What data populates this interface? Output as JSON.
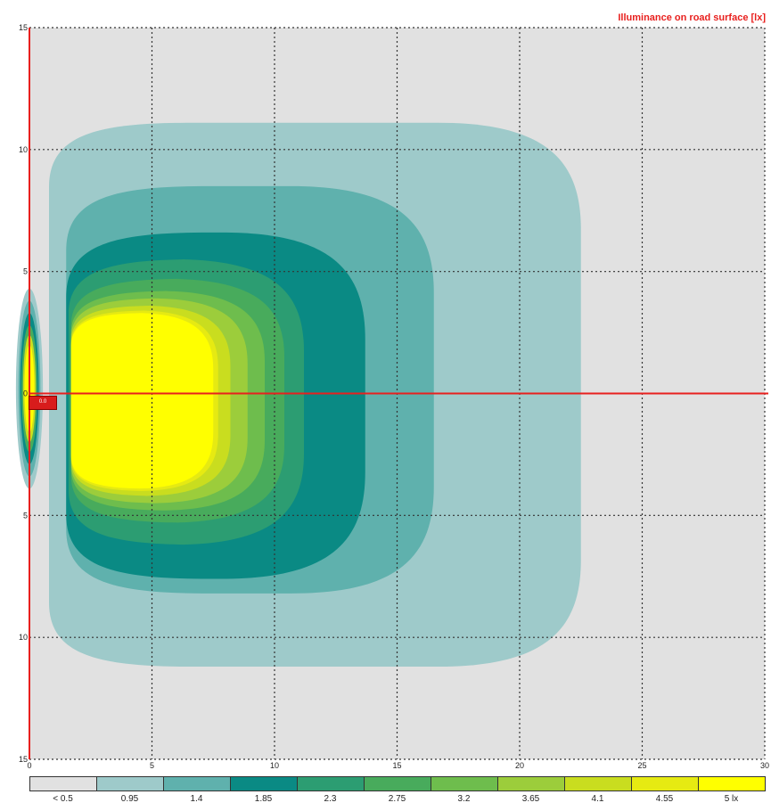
{
  "chart_data": {
    "type": "heatmap",
    "title": "Illuminance on road surface [lx]",
    "xlabel": "",
    "ylabel": "",
    "x_range": [
      0,
      30
    ],
    "y_range": [
      -15,
      15
    ],
    "x_ticks": [
      "0",
      "5",
      "10",
      "15",
      "20",
      "25",
      "30"
    ],
    "y_ticks": [
      "15",
      "10",
      "5",
      "0",
      "5",
      "10",
      "15"
    ],
    "grid": true,
    "legend": {
      "placement": "bottom",
      "labels": [
        "< 0.5",
        "0.95",
        "1.4",
        "1.85",
        "2.3",
        "2.75",
        "3.2",
        "3.65",
        "4.1",
        "4.55",
        "5 lx"
      ],
      "colors": [
        "#e1e1e1",
        "#9ecaca",
        "#5fb1ad",
        "#0a8a84",
        "#2c9d72",
        "#48ab5c",
        "#6ebd4d",
        "#9ccd3b",
        "#c9dd1f",
        "#e6ea12",
        "#ffff00"
      ]
    },
    "contours": [
      {
        "level": "0.95",
        "x_extent": [
          0.8,
          22.5
        ],
        "y_extent": [
          -11.2,
          11.1
        ]
      },
      {
        "level": "1.4",
        "x_extent": [
          1.5,
          16.5
        ],
        "y_extent": [
          -8.2,
          8.5
        ]
      },
      {
        "level": "1.85",
        "x_extent": [
          1.5,
          13.7
        ],
        "y_extent": [
          -7.6,
          6.6
        ]
      },
      {
        "level": "2.3",
        "x_extent": [
          1.6,
          11.2
        ],
        "y_extent": [
          -6.2,
          5.5
        ]
      },
      {
        "level": "2.75",
        "x_extent": [
          1.7,
          10.4
        ],
        "y_extent": [
          -5.3,
          4.7
        ]
      },
      {
        "level": "3.2",
        "x_extent": [
          1.7,
          9.6
        ],
        "y_extent": [
          -4.8,
          4.2
        ]
      },
      {
        "level": "3.65",
        "x_extent": [
          1.7,
          8.9
        ],
        "y_extent": [
          -4.5,
          3.9
        ]
      },
      {
        "level": "4.1",
        "x_extent": [
          1.7,
          8.2
        ],
        "y_extent": [
          -4.2,
          3.6
        ]
      },
      {
        "level": "4.55",
        "x_extent": [
          1.7,
          7.7
        ],
        "y_extent": [
          -4.0,
          3.4
        ]
      },
      {
        "level": "5 lx",
        "x_extent": [
          1.7,
          7.5
        ],
        "y_extent": [
          -3.9,
          3.3
        ]
      }
    ],
    "source_label": "0.0"
  }
}
